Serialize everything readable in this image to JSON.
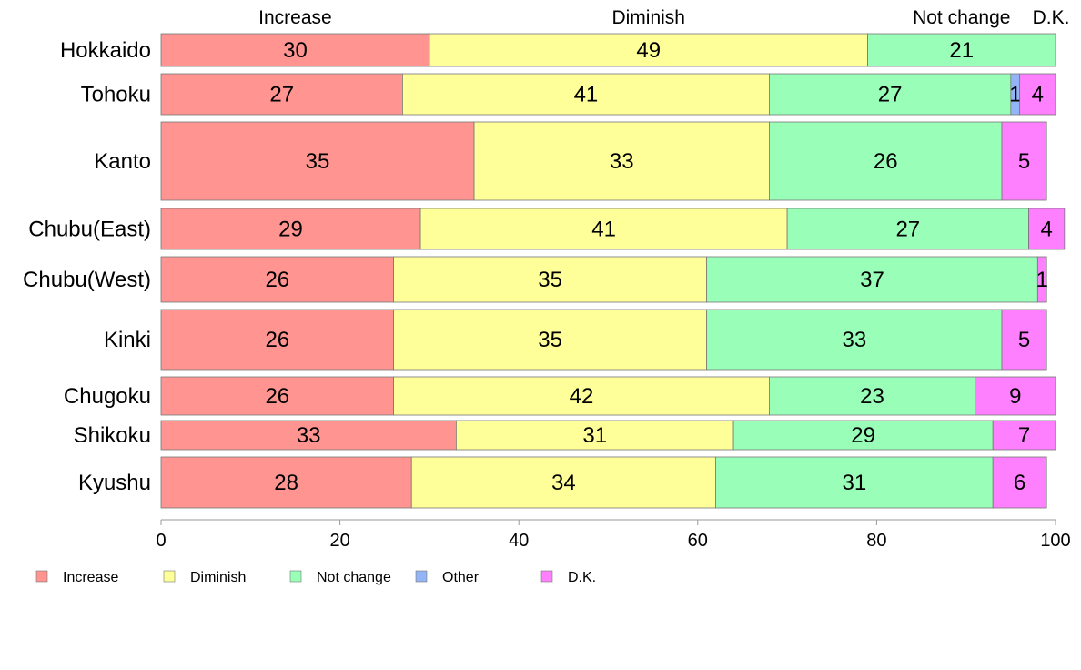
{
  "chart_data": {
    "type": "bar",
    "orientation": "horizontal",
    "stacked": true,
    "variable_width": true,
    "categories": [
      "Hokkaido",
      "Tohoku",
      "Kanto",
      "Chubu(East)",
      "Chubu(West)",
      "Kinki",
      "Chugoku",
      "Shikoku",
      "Kyushu"
    ],
    "series": [
      {
        "name": "Increase",
        "color": "#ff9490",
        "values": [
          30,
          27,
          35,
          29,
          26,
          26,
          26,
          33,
          28
        ]
      },
      {
        "name": "Diminish",
        "color": "#ffff99",
        "values": [
          49,
          41,
          33,
          41,
          35,
          35,
          42,
          31,
          34
        ]
      },
      {
        "name": "Not change",
        "color": "#99ffb8",
        "values": [
          21,
          27,
          26,
          27,
          37,
          33,
          23,
          29,
          31
        ]
      },
      {
        "name": "Other",
        "color": "#93b5f5",
        "values": [
          0,
          1,
          0,
          0,
          0,
          0,
          0,
          0,
          0
        ]
      },
      {
        "name": "D.K.",
        "color": "#ff80ff",
        "values": [
          0,
          4,
          5,
          4,
          1,
          5,
          9,
          7,
          6
        ]
      }
    ],
    "value_labels": [
      [
        "30",
        "49",
        "21",
        "",
        ""
      ],
      [
        "27",
        "41",
        "27",
        "1",
        "4"
      ],
      [
        "35",
        "33",
        "26",
        "",
        "5"
      ],
      [
        "29",
        "41",
        "27",
        "",
        "4"
      ],
      [
        "26",
        "35",
        "37",
        "",
        "1"
      ],
      [
        "26",
        "35",
        "33",
        "",
        "5"
      ],
      [
        "26",
        "42",
        "23",
        "",
        "9"
      ],
      [
        "33",
        "31",
        "29",
        "",
        "7"
      ],
      [
        "28",
        "34",
        "31",
        "",
        "6"
      ]
    ],
    "top_labels": [
      "Increase",
      "Diminish",
      "Not change",
      "D.K."
    ],
    "xlim": [
      0,
      100
    ],
    "xticks": [
      "0",
      "20",
      "40",
      "60",
      "80",
      "100"
    ],
    "legend_position": "bottom-left",
    "grid": false
  }
}
